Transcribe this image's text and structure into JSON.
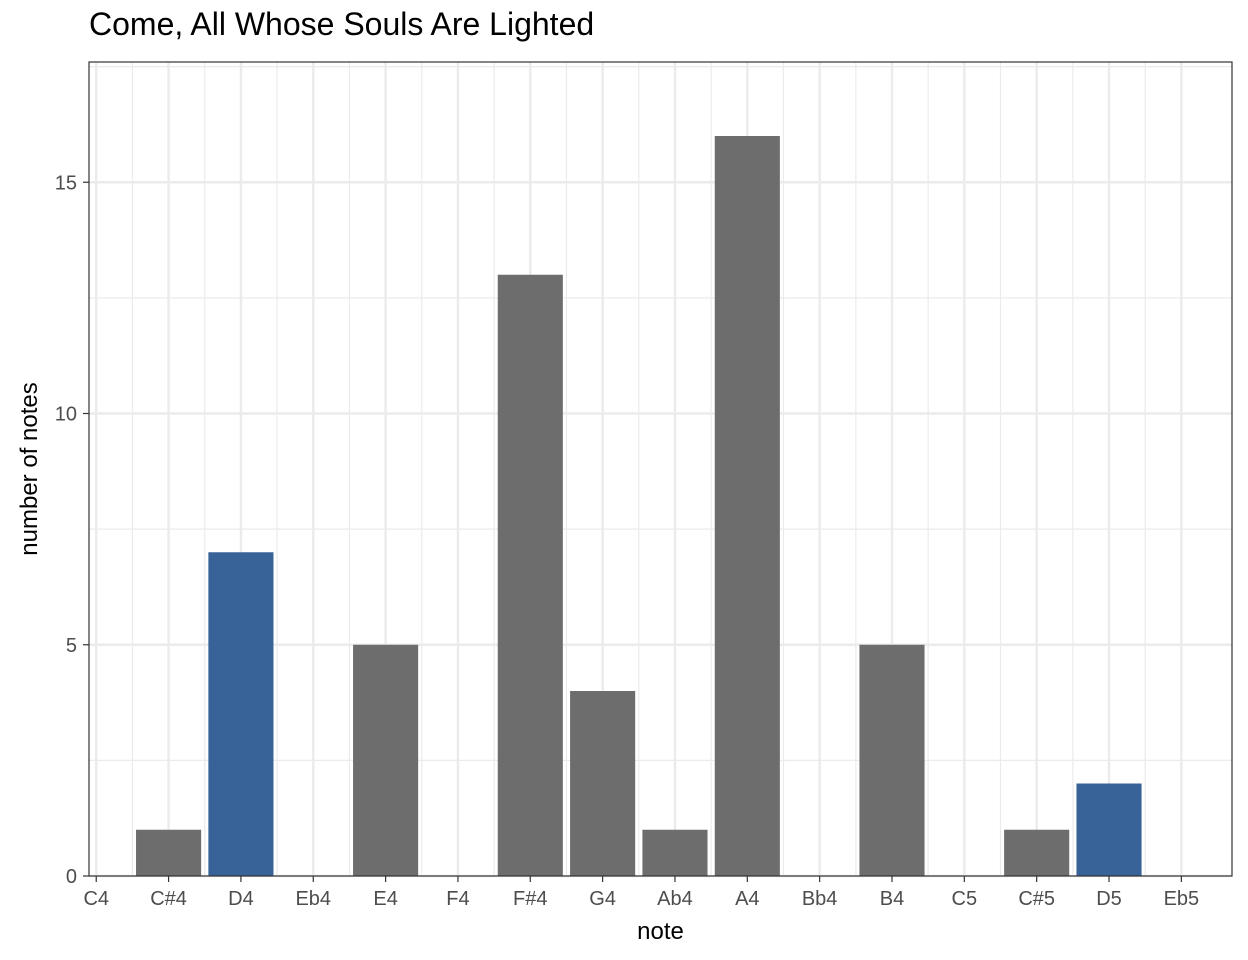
{
  "chart_data": {
    "type": "bar",
    "title": "Come, All Whose Souls Are Lighted",
    "xlabel": "note",
    "ylabel": "number of notes",
    "categories": [
      "C4",
      "C#4",
      "D4",
      "Eb4",
      "E4",
      "F4",
      "F#4",
      "G4",
      "Ab4",
      "A4",
      "Bb4",
      "B4",
      "C5",
      "C#5",
      "D5",
      "Eb5"
    ],
    "values": [
      0,
      1,
      7,
      0,
      5,
      0,
      13,
      4,
      1,
      16,
      0,
      5,
      0,
      1,
      2,
      0
    ],
    "highlighted": [
      "D4",
      "D5"
    ],
    "ylim": [
      0,
      17.6
    ],
    "yticks": [
      0,
      5,
      10,
      15
    ],
    "grid": true,
    "colors": {
      "bar": "#6d6d6d",
      "highlight": "#386399",
      "grid": "#ebebeb",
      "panel_border": "#333333"
    }
  }
}
